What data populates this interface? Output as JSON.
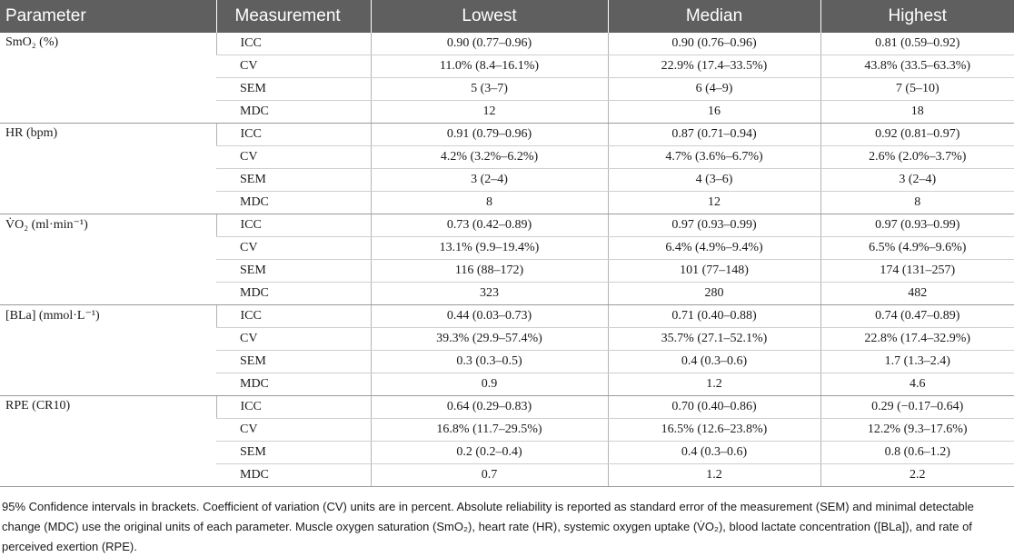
{
  "table": {
    "headers": [
      "Parameter",
      "Measurement",
      "Lowest",
      "Median",
      "Highest"
    ],
    "groups": [
      {
        "param": "SmO₂ (%)",
        "rows": [
          {
            "m": "ICC",
            "lowest": "0.90 (0.77–0.96)",
            "median": "0.90 (0.76–0.96)",
            "highest": "0.81 (0.59–0.92)"
          },
          {
            "m": "CV",
            "lowest": "11.0% (8.4–16.1%)",
            "median": "22.9% (17.4–33.5%)",
            "highest": "43.8% (33.5–63.3%)"
          },
          {
            "m": "SEM",
            "lowest": "5 (3–7)",
            "median": "6 (4–9)",
            "highest": "7 (5–10)"
          },
          {
            "m": "MDC",
            "lowest": "12",
            "median": "16",
            "highest": "18"
          }
        ]
      },
      {
        "param": "HR (bpm)",
        "rows": [
          {
            "m": "ICC",
            "lowest": "0.91 (0.79–0.96)",
            "median": "0.87 (0.71–0.94)",
            "highest": "0.92 (0.81–0.97)"
          },
          {
            "m": "CV",
            "lowest": "4.2% (3.2%–6.2%)",
            "median": "4.7% (3.6%–6.7%)",
            "highest": "2.6% (2.0%–3.7%)"
          },
          {
            "m": "SEM",
            "lowest": "3 (2–4)",
            "median": "4 (3–6)",
            "highest": "3 (2–4)"
          },
          {
            "m": "MDC",
            "lowest": "8",
            "median": "12",
            "highest": "8"
          }
        ]
      },
      {
        "param": "V̇O₂ (ml·min⁻¹)",
        "rows": [
          {
            "m": "ICC",
            "lowest": "0.73 (0.42–0.89)",
            "median": "0.97 (0.93–0.99)",
            "highest": "0.97 (0.93–0.99)"
          },
          {
            "m": "CV",
            "lowest": "13.1% (9.9–19.4%)",
            "median": "6.4% (4.9%–9.4%)",
            "highest": "6.5% (4.9%–9.6%)"
          },
          {
            "m": "SEM",
            "lowest": "116 (88–172)",
            "median": "101 (77–148)",
            "highest": "174 (131–257)"
          },
          {
            "m": "MDC",
            "lowest": "323",
            "median": "280",
            "highest": "482"
          }
        ]
      },
      {
        "param": "[BLa] (mmol·L⁻¹)",
        "rows": [
          {
            "m": "ICC",
            "lowest": "0.44 (0.03–0.73)",
            "median": "0.71 (0.40–0.88)",
            "highest": "0.74 (0.47–0.89)"
          },
          {
            "m": "CV",
            "lowest": "39.3% (29.9–57.4%)",
            "median": "35.7% (27.1–52.1%)",
            "highest": "22.8% (17.4–32.9%)"
          },
          {
            "m": "SEM",
            "lowest": "0.3 (0.3–0.5)",
            "median": "0.4 (0.3–0.6)",
            "highest": "1.7 (1.3–2.4)"
          },
          {
            "m": "MDC",
            "lowest": "0.9",
            "median": "1.2",
            "highest": "4.6"
          }
        ]
      },
      {
        "param": "RPE (CR10)",
        "rows": [
          {
            "m": "ICC",
            "lowest": "0.64 (0.29–0.83)",
            "median": "0.70 (0.40–0.86)",
            "highest": "0.29 (−0.17–0.64)"
          },
          {
            "m": "CV",
            "lowest": "16.8% (11.7–29.5%)",
            "median": "16.5% (12.6–23.8%)",
            "highest": "12.2% (9.3–17.6%)"
          },
          {
            "m": "SEM",
            "lowest": "0.2 (0.2–0.4)",
            "median": "0.4 (0.3–0.6)",
            "highest": "0.8 (0.6–1.2)"
          },
          {
            "m": "MDC",
            "lowest": "0.7",
            "median": "1.2",
            "highest": "2.2"
          }
        ]
      }
    ]
  },
  "footnote": "95% Confidence intervals in brackets. Coefficient of variation (CV) units are in percent. Absolute reliability is reported as standard error of the measurement (SEM) and minimal detectable change (MDC) use the original units of each parameter. Muscle oxygen saturation (SmO₂), heart rate (HR), systemic oxygen uptake (V̇O₂), blood lactate concentration ([BLa]), and rate of perceived exertion (RPE)."
}
